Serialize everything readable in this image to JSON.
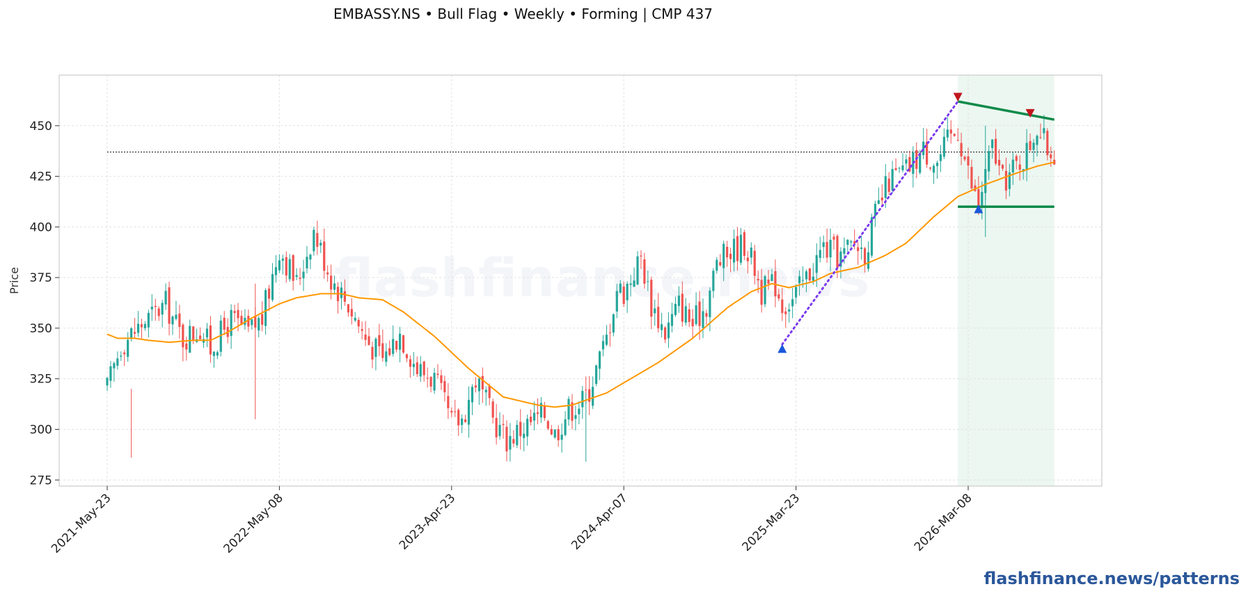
{
  "title": "EMBASSY.NS  •  Bull Flag  •  Weekly  •  Forming  |  CMP 437",
  "credit": "flashfinance.news/patterns",
  "watermark": "flashfinance.news",
  "chart_data": {
    "type": "candlestick",
    "ylabel": "Price",
    "ylim": [
      272,
      475
    ],
    "y_ticks": [
      275,
      300,
      325,
      350,
      375,
      400,
      425,
      450
    ],
    "x_tick_labels": [
      "2021-May-23",
      "2022-May-08",
      "2023-Apr-23",
      "2024-Apr-07",
      "2025-Mar-23",
      "2026-Mar-08"
    ],
    "x_tick_weeks": [
      0,
      50,
      100,
      150,
      200,
      250
    ],
    "grid": true,
    "colors": {
      "up": "#26a69a",
      "down": "#ef5350",
      "ma": "#ff9800",
      "pattern": "#0f8a4a",
      "pole": "#7c3aed",
      "marker_high": "#c0161d",
      "marker_low": "#1a56db",
      "cmp_line": "#333333",
      "zone": "#e9f6ee"
    },
    "cmp": 437,
    "pattern_zone_weeks": [
      247,
      275
    ],
    "flag_upper": {
      "start": [
        247,
        462
      ],
      "end": [
        275,
        453
      ]
    },
    "flag_lower": {
      "start": [
        247,
        410
      ],
      "end": [
        275,
        410
      ]
    },
    "pole": {
      "start": [
        196,
        342
      ],
      "end": [
        247,
        462
      ]
    },
    "markers": [
      {
        "type": "low",
        "week": 196,
        "price": 340
      },
      {
        "type": "high",
        "week": 247,
        "price": 464
      },
      {
        "type": "low",
        "week": 253,
        "price": 409
      },
      {
        "type": "high",
        "week": 268,
        "price": 456
      }
    ],
    "price_anchors": [
      [
        0,
        320
      ],
      [
        4,
        342
      ],
      [
        10,
        352
      ],
      [
        17,
        362
      ],
      [
        22,
        345
      ],
      [
        27,
        350
      ],
      [
        30,
        340
      ],
      [
        36,
        354
      ],
      [
        41,
        348
      ],
      [
        45,
        355
      ],
      [
        50,
        390
      ],
      [
        55,
        372
      ],
      [
        60,
        398
      ],
      [
        65,
        375
      ],
      [
        70,
        362
      ],
      [
        75,
        345
      ],
      [
        80,
        335
      ],
      [
        85,
        348
      ],
      [
        90,
        330
      ],
      [
        95,
        325
      ],
      [
        100,
        303
      ],
      [
        103,
        305
      ],
      [
        107,
        325
      ],
      [
        112,
        305
      ],
      [
        116,
        295
      ],
      [
        120,
        300
      ],
      [
        127,
        308
      ],
      [
        130,
        298
      ],
      [
        134,
        310
      ],
      [
        138,
        314
      ],
      [
        140,
        320
      ],
      [
        145,
        345
      ],
      [
        148,
        370
      ],
      [
        150,
        368
      ],
      [
        155,
        385
      ],
      [
        158,
        362
      ],
      [
        162,
        348
      ],
      [
        166,
        362
      ],
      [
        170,
        352
      ],
      [
        174,
        362
      ],
      [
        177,
        382
      ],
      [
        181,
        388
      ],
      [
        185,
        392
      ],
      [
        188,
        380
      ],
      [
        190,
        368
      ],
      [
        194,
        372
      ],
      [
        196,
        362
      ],
      [
        199,
        364
      ],
      [
        203,
        375
      ],
      [
        208,
        390
      ],
      [
        213,
        385
      ],
      [
        217,
        392
      ],
      [
        220,
        388
      ],
      [
        223,
        405
      ],
      [
        227,
        423
      ],
      [
        232,
        428
      ],
      [
        237,
        438
      ],
      [
        241,
        432
      ],
      [
        244,
        442
      ],
      [
        247,
        448
      ],
      [
        251,
        420
      ],
      [
        253,
        411
      ],
      [
        257,
        440
      ],
      [
        260,
        422
      ],
      [
        264,
        430
      ],
      [
        267,
        437
      ],
      [
        270,
        450
      ],
      [
        273,
        438
      ],
      [
        275,
        437
      ]
    ],
    "ma_anchors": [
      [
        0,
        347
      ],
      [
        3,
        345
      ],
      [
        8,
        345
      ],
      [
        12,
        344
      ],
      [
        18,
        343
      ],
      [
        25,
        344
      ],
      [
        30,
        344
      ],
      [
        35,
        348
      ],
      [
        42,
        355
      ],
      [
        50,
        362
      ],
      [
        55,
        365
      ],
      [
        62,
        367
      ],
      [
        68,
        367
      ],
      [
        73,
        365
      ],
      [
        80,
        364
      ],
      [
        86,
        358
      ],
      [
        95,
        346
      ],
      [
        105,
        330
      ],
      [
        115,
        316
      ],
      [
        125,
        312
      ],
      [
        130,
        311
      ],
      [
        135,
        312
      ],
      [
        140,
        315
      ],
      [
        145,
        318
      ],
      [
        150,
        323
      ],
      [
        160,
        333
      ],
      [
        170,
        345
      ],
      [
        180,
        360
      ],
      [
        187,
        368
      ],
      [
        193,
        372
      ],
      [
        198,
        370
      ],
      [
        205,
        373
      ],
      [
        210,
        377
      ],
      [
        218,
        380
      ],
      [
        226,
        386
      ],
      [
        232,
        392
      ],
      [
        240,
        405
      ],
      [
        247,
        415
      ],
      [
        255,
        421
      ],
      [
        263,
        426
      ],
      [
        270,
        430
      ],
      [
        275,
        432
      ]
    ]
  }
}
